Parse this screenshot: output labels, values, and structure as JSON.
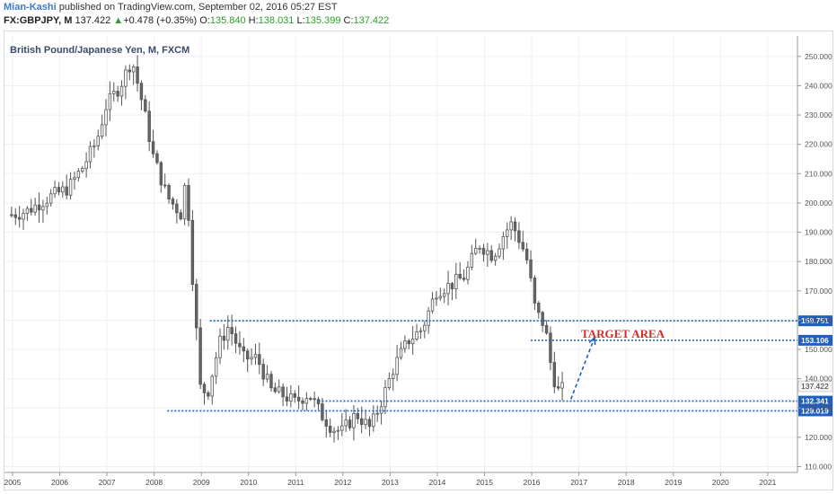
{
  "header": {
    "author": "Mian-Kashi",
    "published": " published on TradingView.com, September 02, 2016 05:27 EST",
    "symbol": "FX:GBPJPY, M",
    "last": " 137.422",
    "change": "+0.478 (+0.35%)",
    "o_label": "O:",
    "o": "135.840",
    "h_label": "H:",
    "h": "138.031",
    "l_label": "L:",
    "l": "135.399",
    "c_label": "C:",
    "c": "137.422"
  },
  "chart_data": {
    "type": "candlestick",
    "title": "British Pound/Japanese Yen, M, FXCM",
    "x_ticks": [
      "2005",
      "2006",
      "2007",
      "2008",
      "2009",
      "2010",
      "2011",
      "2012",
      "2013",
      "2014",
      "2015",
      "2016",
      "2017",
      "2018",
      "2019",
      "2020",
      "2021"
    ],
    "y_ticks": [
      "250.000",
      "240.000",
      "230.000",
      "220.000",
      "210.000",
      "200.000",
      "190.000",
      "180.000",
      "170.000",
      "160.000",
      "150.000",
      "140.000",
      "130.000",
      "120.000",
      "110.000"
    ],
    "ylim": [
      108,
      257
    ],
    "xlim": [
      2004.85,
      2021.65
    ],
    "grid": true,
    "annotations": {
      "target_label": "TARGET AREA",
      "levels": [
        {
          "value": 159.751,
          "label": "159.751",
          "start": 2009.2
        },
        {
          "value": 153.106,
          "label": "153.106",
          "start": 2016.0
        },
        {
          "value": 132.341,
          "label": "132.341",
          "start": 2011.5
        },
        {
          "value": 129.019,
          "label": "129.019",
          "start": 2008.3
        }
      ],
      "current_price": "137.422",
      "current_value": 137.422,
      "arrow": {
        "from": [
          2016.85,
          133.0
        ],
        "to": [
          2017.35,
          154.0
        ]
      },
      "colors": {
        "level": "#1f5fbf",
        "label_bg": "#1f5fbf",
        "text": "#d42a2a"
      }
    },
    "series": [
      {
        "name": "GBPJPY",
        "anchors": [
          [
            2005.0,
            196
          ],
          [
            2005.3,
            197
          ],
          [
            2005.8,
            202
          ],
          [
            2006.2,
            205
          ],
          [
            2006.5,
            212
          ],
          [
            2006.8,
            221
          ],
          [
            2007.0,
            233
          ],
          [
            2007.3,
            240
          ],
          [
            2007.55,
            249
          ],
          [
            2007.8,
            232
          ],
          [
            2008.0,
            216
          ],
          [
            2008.3,
            202
          ],
          [
            2008.6,
            196
          ],
          [
            2008.7,
            210
          ],
          [
            2008.8,
            182
          ],
          [
            2008.9,
            160
          ],
          [
            2009.0,
            137
          ],
          [
            2009.15,
            135
          ],
          [
            2009.4,
            152
          ],
          [
            2009.6,
            158
          ],
          [
            2009.9,
            147
          ],
          [
            2010.2,
            147
          ],
          [
            2010.5,
            136
          ],
          [
            2010.8,
            134
          ],
          [
            2011.0,
            132
          ],
          [
            2011.3,
            135
          ],
          [
            2011.55,
            128
          ],
          [
            2011.8,
            123
          ],
          [
            2012.0,
            122
          ],
          [
            2012.3,
            128
          ],
          [
            2012.6,
            123
          ],
          [
            2012.9,
            135
          ],
          [
            2013.1,
            144
          ],
          [
            2013.4,
            153
          ],
          [
            2013.7,
            157
          ],
          [
            2014.0,
            170
          ],
          [
            2014.3,
            172
          ],
          [
            2014.6,
            175
          ],
          [
            2014.9,
            186
          ],
          [
            2015.2,
            182
          ],
          [
            2015.45,
            190
          ],
          [
            2015.6,
            193
          ],
          [
            2015.8,
            186
          ],
          [
            2015.95,
            179
          ],
          [
            2016.0,
            173
          ],
          [
            2016.1,
            163
          ],
          [
            2016.3,
            158
          ],
          [
            2016.45,
            142
          ],
          [
            2016.6,
            135
          ],
          [
            2016.7,
            137
          ]
        ]
      }
    ]
  }
}
